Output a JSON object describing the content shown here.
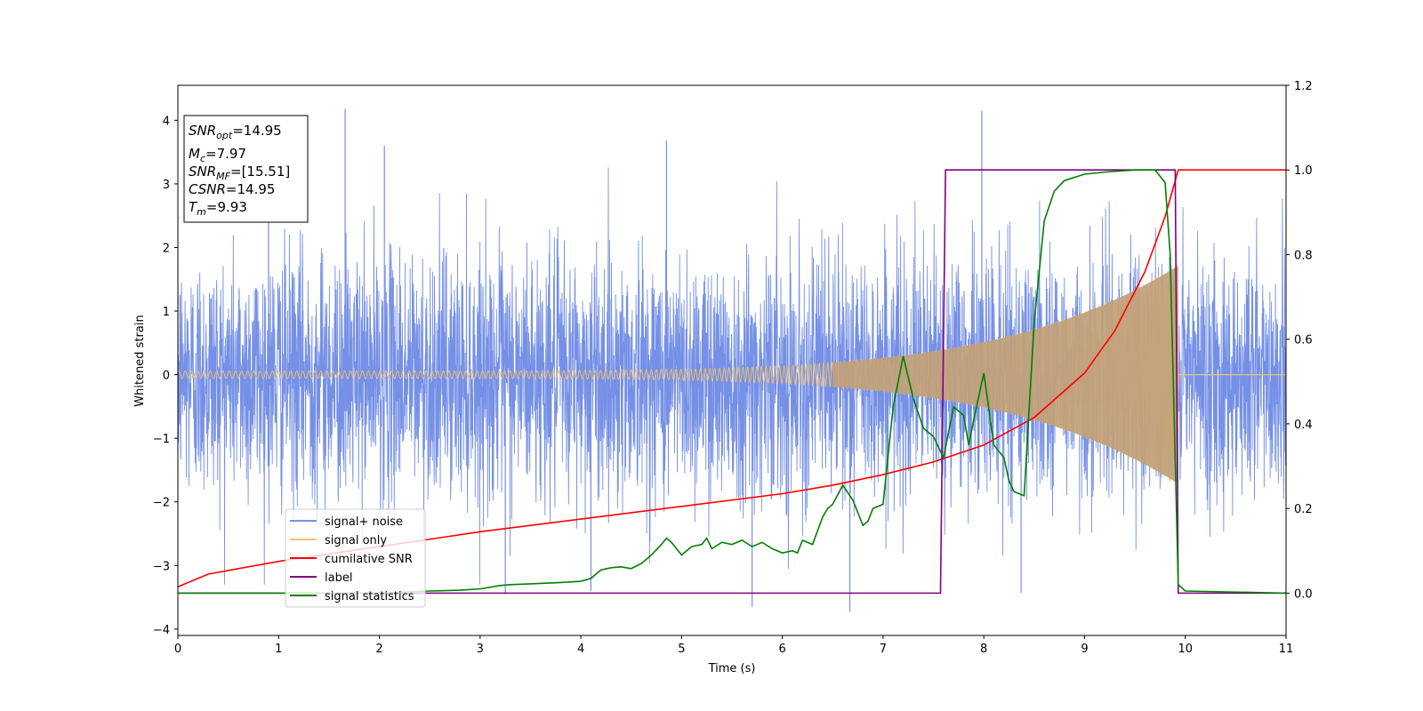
{
  "chart_data": {
    "type": "line",
    "xlabel": "Time (s)",
    "ylabel": "Whitened strain",
    "y2label": "",
    "xlim": [
      0,
      11
    ],
    "ylim": [
      -4.1,
      4.55
    ],
    "y2lim": [
      -0.1,
      1.2
    ],
    "x_ticks": [
      0,
      1,
      2,
      3,
      4,
      5,
      6,
      7,
      8,
      9,
      10,
      11
    ],
    "y_ticks": [
      -4,
      -3,
      -2,
      -1,
      0,
      1,
      2,
      3,
      4
    ],
    "y2_ticks": [
      0.0,
      0.2,
      0.4,
      0.6,
      0.8,
      1.0,
      1.2
    ],
    "grid": false,
    "legend_position": "lower-left",
    "annotation": {
      "lines": [
        {
          "base": "SNR",
          "sub": "opt",
          "value": "=14.95"
        },
        {
          "base": "M",
          "sub": "c",
          "value": "=7.97"
        },
        {
          "base": "SNR",
          "sub": "MF",
          "value": "=[15.51]"
        },
        {
          "base": "CSNR",
          "sub": "",
          "value": "=14.95"
        },
        {
          "base": "T",
          "sub": "m",
          "value": "=9.93"
        }
      ]
    },
    "series": [
      {
        "name": "signal+ noise",
        "axis": "left",
        "color": "#7590e6",
        "kind": "noise",
        "std": 0.95,
        "spikes": [
          [
            1.66,
            4.18
          ],
          [
            7.98,
            4.15
          ],
          [
            2.05,
            3.6
          ],
          [
            4.85,
            3.68
          ],
          [
            0.9,
            3.65
          ],
          [
            6.67,
            -3.73
          ],
          [
            5.7,
            -3.65
          ],
          [
            8.37,
            -3.43
          ],
          [
            3.25,
            -3.45
          ],
          [
            4.1,
            -3.4
          ]
        ]
      },
      {
        "name": "signal only",
        "axis": "left",
        "color": "#f5c26b",
        "kind": "chirp",
        "merger_time": 9.93,
        "end_amplitude": 1.75
      },
      {
        "name": "cumilative SNR",
        "axis": "right",
        "color": "#ff0000",
        "kind": "line",
        "x": [
          0,
          0.3,
          1,
          2,
          3,
          4,
          5,
          6,
          6.5,
          7,
          7.5,
          8,
          8.5,
          9,
          9.3,
          9.6,
          9.8,
          9.93,
          9.95,
          11
        ],
        "y": [
          0.015,
          0.045,
          0.075,
          0.11,
          0.145,
          0.175,
          0.205,
          0.235,
          0.255,
          0.28,
          0.31,
          0.35,
          0.415,
          0.52,
          0.62,
          0.76,
          0.89,
          1.0,
          1.0,
          1.0
        ]
      },
      {
        "name": "label",
        "axis": "right",
        "color": "#800080",
        "kind": "line",
        "x": [
          0,
          7.57,
          7.62,
          9.9,
          9.93,
          11
        ],
        "y": [
          0.0,
          0.0,
          1.0,
          1.0,
          0.0,
          0.0
        ]
      },
      {
        "name": "signal statistics",
        "axis": "right",
        "color": "#008000",
        "kind": "line",
        "x": [
          0,
          2.0,
          2.5,
          2.8,
          3.0,
          3.2,
          3.3,
          3.5,
          3.8,
          4.0,
          4.1,
          4.2,
          4.3,
          4.4,
          4.5,
          4.6,
          4.7,
          4.8,
          4.85,
          4.9,
          5.0,
          5.1,
          5.2,
          5.25,
          5.3,
          5.4,
          5.5,
          5.6,
          5.7,
          5.8,
          5.9,
          6.0,
          6.1,
          6.15,
          6.2,
          6.3,
          6.4,
          6.45,
          6.5,
          6.6,
          6.7,
          6.8,
          6.85,
          6.9,
          7.0,
          7.1,
          7.2,
          7.3,
          7.4,
          7.5,
          7.6,
          7.7,
          7.8,
          7.85,
          7.9,
          8.0,
          8.1,
          8.2,
          8.25,
          8.3,
          8.4,
          8.5,
          8.6,
          8.7,
          8.8,
          9.0,
          9.2,
          9.5,
          9.7,
          9.8,
          9.85,
          9.93,
          10.0,
          11.0
        ],
        "y": [
          0.0,
          0.0,
          0.005,
          0.007,
          0.01,
          0.018,
          0.02,
          0.022,
          0.025,
          0.028,
          0.035,
          0.055,
          0.06,
          0.062,
          0.058,
          0.07,
          0.09,
          0.115,
          0.13,
          0.12,
          0.09,
          0.11,
          0.115,
          0.13,
          0.105,
          0.12,
          0.115,
          0.125,
          0.11,
          0.12,
          0.105,
          0.095,
          0.1,
          0.095,
          0.125,
          0.115,
          0.18,
          0.2,
          0.21,
          0.255,
          0.22,
          0.16,
          0.17,
          0.2,
          0.21,
          0.44,
          0.56,
          0.46,
          0.39,
          0.37,
          0.32,
          0.44,
          0.42,
          0.35,
          0.41,
          0.52,
          0.35,
          0.32,
          0.265,
          0.24,
          0.23,
          0.64,
          0.88,
          0.95,
          0.975,
          0.99,
          0.995,
          1.0,
          1.0,
          0.97,
          0.8,
          0.02,
          0.005,
          0.0
        ]
      }
    ]
  }
}
